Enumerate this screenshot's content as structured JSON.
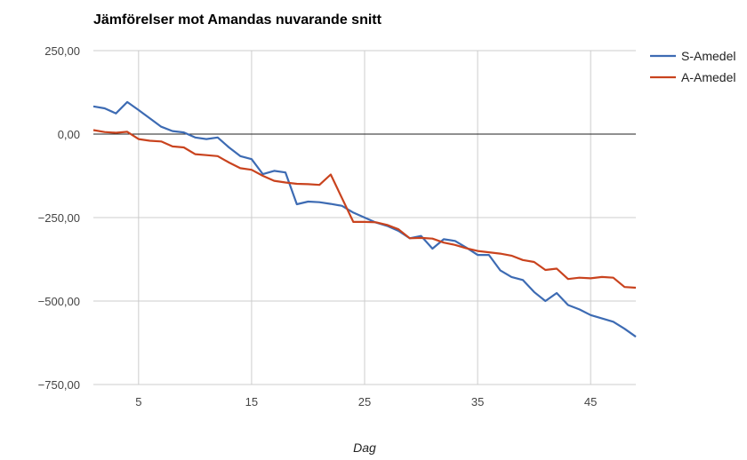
{
  "chart_data": {
    "type": "line",
    "title": "Jämförelser mot Amandas nuvarande snitt",
    "xlabel": "Dag",
    "ylabel": "",
    "xlim": [
      1,
      49
    ],
    "ylim": [
      -750,
      250
    ],
    "x_ticks": [
      5,
      15,
      25,
      35,
      45
    ],
    "y_ticks": [
      250,
      0,
      -250,
      -500,
      -750
    ],
    "y_tick_labels": [
      "250,00",
      "0,00",
      "−250,00",
      "−500,00",
      "−750,00"
    ],
    "grid": true,
    "legend_position": "top-right",
    "x": [
      1,
      2,
      3,
      4,
      5,
      6,
      7,
      8,
      9,
      10,
      11,
      12,
      13,
      14,
      15,
      16,
      17,
      18,
      19,
      20,
      21,
      22,
      23,
      24,
      25,
      26,
      27,
      28,
      29,
      30,
      31,
      32,
      33,
      34,
      35,
      36,
      37,
      38,
      39,
      40,
      41,
      42,
      43,
      44,
      45,
      46,
      47,
      48,
      49
    ],
    "series": [
      {
        "name": "S-Amedel",
        "color": "#3d6bb3",
        "values": [
          83,
          77,
          62,
          96,
          72,
          47,
          22,
          9,
          5,
          -10,
          -15,
          -10,
          -40,
          -66,
          -75,
          -120,
          -110,
          -115,
          -210,
          -202,
          -204,
          -209,
          -215,
          -235,
          -250,
          -265,
          -275,
          -290,
          -312,
          -305,
          -343,
          -315,
          -320,
          -340,
          -362,
          -362,
          -408,
          -428,
          -437,
          -473,
          -500,
          -476,
          -512,
          -525,
          -542,
          -552,
          -562,
          -583,
          -607
        ]
      },
      {
        "name": "A-Amedel",
        "color": "#c9431e",
        "values": [
          12,
          6,
          4,
          7,
          -15,
          -20,
          -22,
          -37,
          -40,
          -60,
          -63,
          -66,
          -85,
          -102,
          -107,
          -125,
          -140,
          -145,
          -149,
          -150,
          -152,
          -121,
          -192,
          -263,
          -263,
          -264,
          -272,
          -285,
          -312,
          -311,
          -313,
          -325,
          -332,
          -342,
          -350,
          -354,
          -358,
          -364,
          -377,
          -383,
          -407,
          -403,
          -434,
          -430,
          -432,
          -428,
          -430,
          -458,
          -460
        ]
      }
    ]
  }
}
